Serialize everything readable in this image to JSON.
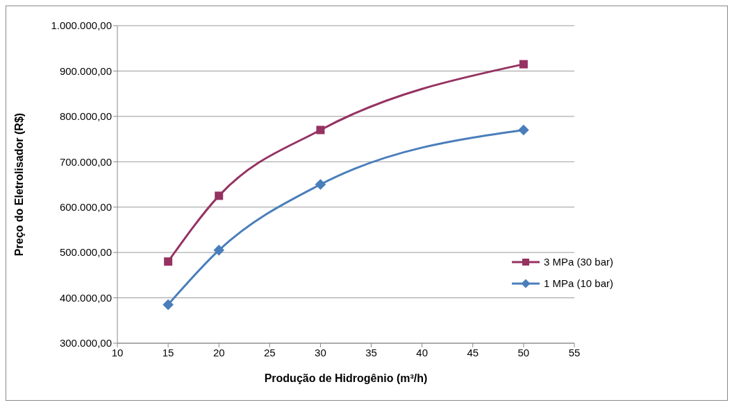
{
  "chart_data": {
    "type": "line",
    "xlabel": "Produção de Hidrogênio (m³/h)",
    "ylabel": "Preço do Eletrolisador (R$)",
    "x": [
      15,
      20,
      30,
      50
    ],
    "series": [
      {
        "name": "3 MPa (30 bar)",
        "color": "#953262",
        "values": [
          480000,
          625000,
          770000,
          915000
        ],
        "marker": "square"
      },
      {
        "name": "1 MPa (10 bar)",
        "color": "#4a7ebb",
        "values": [
          385000,
          505000,
          650000,
          770000
        ],
        "marker": "diamond"
      }
    ],
    "xlim": [
      10,
      55
    ],
    "xticks": [
      10,
      15,
      20,
      25,
      30,
      35,
      40,
      45,
      50,
      55
    ],
    "ylim": [
      300000,
      1000000
    ],
    "yticks": [
      {
        "value": 300000,
        "label": "300.000,00"
      },
      {
        "value": 400000,
        "label": "400.000,00"
      },
      {
        "value": 500000,
        "label": "500.000,00"
      },
      {
        "value": 600000,
        "label": "600.000,00"
      },
      {
        "value": 700000,
        "label": "700.000,00"
      },
      {
        "value": 800000,
        "label": "800.000,00"
      },
      {
        "value": 900000,
        "label": "900.000,00"
      },
      {
        "value": 1000000,
        "label": "1.000.000,00"
      }
    ],
    "grid": "y",
    "legend": "right",
    "line_style": "solid"
  }
}
